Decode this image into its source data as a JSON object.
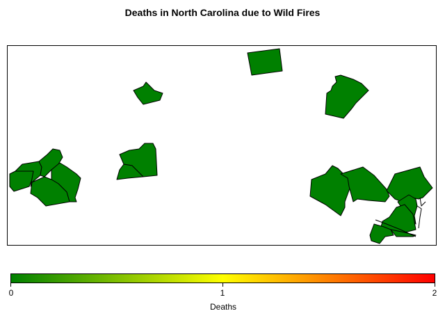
{
  "title": "Deaths in North Carolina due to Wild Fires",
  "legend": {
    "label": "Deaths",
    "ticks": [
      "0",
      "1",
      "2"
    ],
    "min": 0,
    "max": 2,
    "colors": [
      "#008000",
      "#ffff00",
      "#ff0000"
    ]
  },
  "map": {
    "counties": [
      {
        "id": "county-1",
        "deaths": 0
      },
      {
        "id": "county-2",
        "deaths": 0
      },
      {
        "id": "county-3",
        "deaths": 0
      },
      {
        "id": "county-4",
        "deaths": 0
      },
      {
        "id": "county-5",
        "deaths": 0
      },
      {
        "id": "county-6",
        "deaths": 0
      },
      {
        "id": "county-7",
        "deaths": 0
      },
      {
        "id": "county-8",
        "deaths": 0
      },
      {
        "id": "county-9",
        "deaths": 0
      },
      {
        "id": "county-10",
        "deaths": 0
      },
      {
        "id": "county-11",
        "deaths": 0
      },
      {
        "id": "county-12",
        "deaths": 0
      },
      {
        "id": "county-13",
        "deaths": 0
      },
      {
        "id": "county-14",
        "deaths": 0
      },
      {
        "id": "county-15",
        "deaths": 0
      },
      {
        "id": "county-16",
        "deaths": 0
      },
      {
        "id": "county-17",
        "deaths": 0
      }
    ]
  }
}
